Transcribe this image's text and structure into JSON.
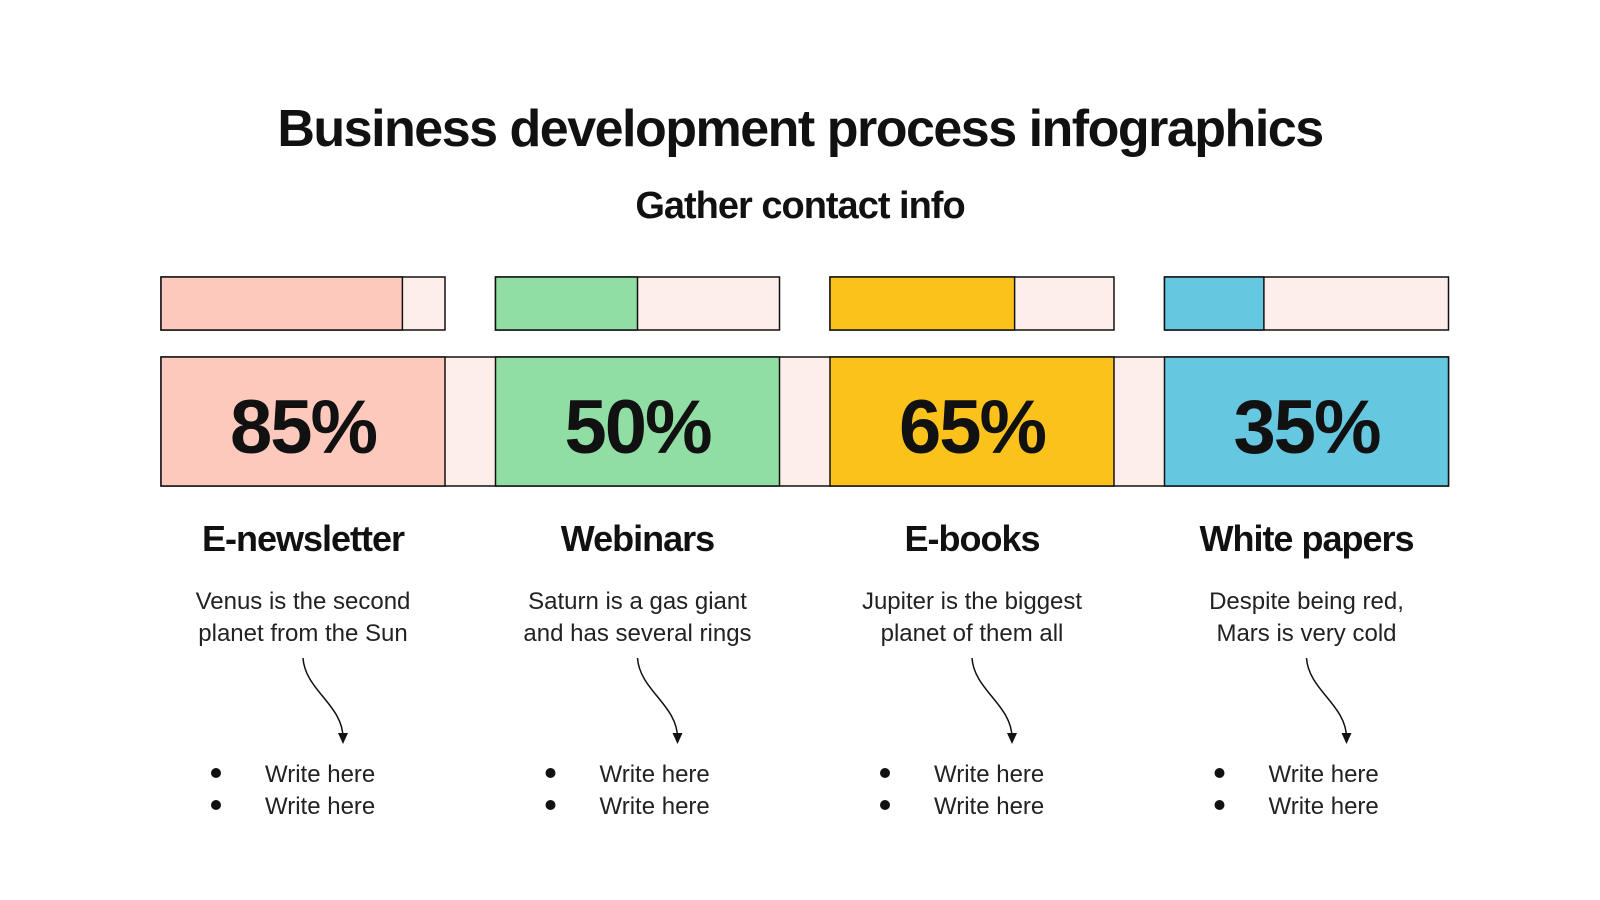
{
  "chart_data": {
    "type": "progress",
    "title": "Business development process infographics",
    "subtitle": "Gather contact info",
    "xlim": [
      0,
      100
    ],
    "categories": [
      "E-newsletter",
      "Webinars",
      "E-books",
      "White papers"
    ],
    "values": [
      85,
      50,
      65,
      35
    ],
    "value_labels": [
      "85%",
      "50%",
      "65%",
      "35%"
    ],
    "colors": [
      "#fdc9bd",
      "#90dea4",
      "#fbc21c",
      "#66c8e0"
    ],
    "track_color": "#fdeeea",
    "descriptions": [
      [
        "Venus is the second",
        "planet from the Sun"
      ],
      [
        "Saturn is a gas giant",
        "and has several rings"
      ],
      [
        "Jupiter is the biggest",
        "planet of them all"
      ],
      [
        "Despite being red,",
        "Mars is very cold"
      ]
    ],
    "bullets": [
      [
        "Write here",
        "Write here"
      ],
      [
        "Write here",
        "Write here"
      ],
      [
        "Write here",
        "Write here"
      ],
      [
        "Write here",
        "Write here"
      ]
    ]
  }
}
